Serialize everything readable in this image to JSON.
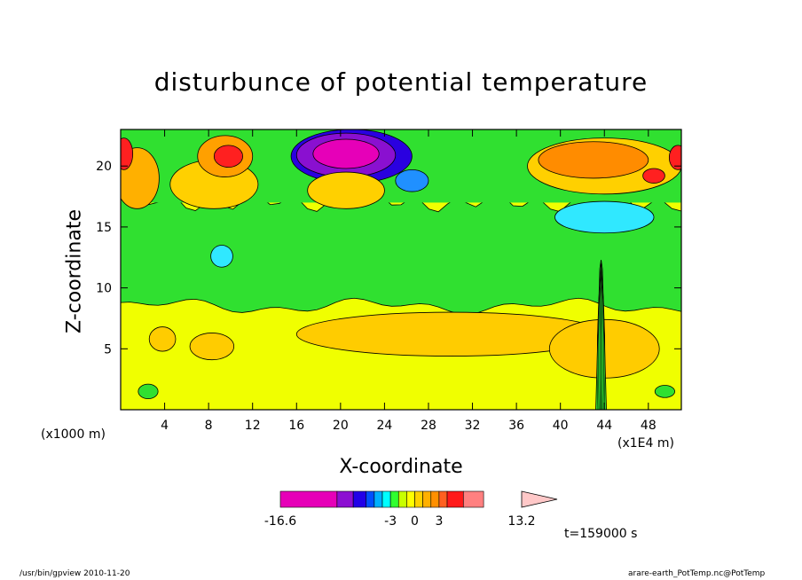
{
  "header": {
    "title": "disturbunce of potential temperature"
  },
  "footer": {
    "left": "/usr/bin/gpview   2010-11-20",
    "right": "arare-earth_PotTemp.nc@PotTemp"
  },
  "annotation": {
    "time": "t=159000 s"
  },
  "chart_data": {
    "type": "heatmap",
    "title": "disturbunce of potential temperature",
    "xlabel": "X-coordinate",
    "ylabel": "Z-coordinate",
    "x_unit_label": "(x1000 m)",
    "x_unit_label_2": "(x1E4 m)",
    "xlim": [
      0,
      51
    ],
    "ylim": [
      0,
      23
    ],
    "x_ticks": [
      4,
      8,
      12,
      16,
      20,
      24,
      28,
      32,
      36,
      40,
      44,
      48
    ],
    "y_ticks": [
      5,
      10,
      15,
      20
    ],
    "x_tick_labels": [
      "4",
      "8",
      "12",
      "16",
      "20",
      "24",
      "28",
      "32",
      "36",
      "40",
      "44",
      "48"
    ],
    "y_tick_labels": [
      "5",
      "10",
      "15",
      "20"
    ],
    "colorbar": {
      "min": -16.6,
      "max": 13.2,
      "levels": [
        -16.6,
        -9.6,
        -7.6,
        -6,
        -5,
        -4,
        -3,
        -2,
        -1,
        0,
        1,
        2,
        3,
        4,
        6,
        8.5,
        13.2
      ],
      "colors": [
        "#e600b8",
        "#8c0fd2",
        "#2200e8",
        "#0050ff",
        "#00b0ff",
        "#00ffff",
        "#30ff30",
        "#c8ff00",
        "#ffff00",
        "#ffd200",
        "#ffb000",
        "#ff9000",
        "#ff6020",
        "#ff1a1a",
        "#ff8080"
      ],
      "extend_color": "#ffc8c8",
      "tick_labels": [
        {
          "value": -16.6,
          "text": "-16.6"
        },
        {
          "value": -3,
          "text": "-3"
        },
        {
          "value": 0,
          "text": "0"
        },
        {
          "value": 3,
          "text": "3"
        },
        {
          "value": 13.2,
          "text": "13.2"
        }
      ]
    },
    "regions": {
      "background": "#f0ff00",
      "mid_band": {
        "z_range": [
          8.5,
          17
        ],
        "color": "#30e030"
      },
      "upper_blobs": [
        {
          "x": 21,
          "z": 20.8,
          "rx": 5.5,
          "rz": 2.2,
          "color": "#2a00e0"
        },
        {
          "x": 20.5,
          "z": 20.9,
          "rx": 4.5,
          "rz": 1.8,
          "color": "#8a10d0"
        },
        {
          "x": 20.5,
          "z": 21,
          "rx": 3,
          "rz": 1.2,
          "color": "#e600b8"
        },
        {
          "x": 26.5,
          "z": 18.8,
          "rx": 1.5,
          "rz": 0.9,
          "color": "#2090ff"
        },
        {
          "x": 9.5,
          "z": 20.8,
          "rx": 2.5,
          "rz": 1.7,
          "color": "#ffa000"
        },
        {
          "x": 9.8,
          "z": 20.8,
          "rx": 1.3,
          "rz": 0.9,
          "color": "#ff2020"
        },
        {
          "x": 44,
          "z": 20,
          "rx": 7,
          "rz": 2.3,
          "color": "#ffd000"
        },
        {
          "x": 43,
          "z": 20.5,
          "rx": 5,
          "rz": 1.5,
          "color": "#ff8c00"
        },
        {
          "x": 48.5,
          "z": 19.2,
          "rx": 1,
          "rz": 0.6,
          "color": "#ff2020"
        },
        {
          "x": 50.7,
          "z": 20.7,
          "rx": 0.8,
          "rz": 1,
          "color": "#ff2020"
        },
        {
          "x": 0.3,
          "z": 21,
          "rx": 0.8,
          "rz": 1.3,
          "color": "#ff2020"
        },
        {
          "x": 44,
          "z": 15.8,
          "rx": 4.5,
          "rz": 1.3,
          "color": "#30e8ff"
        },
        {
          "x": 9.2,
          "z": 12.6,
          "rx": 1,
          "rz": 0.9,
          "color": "#30e8ff"
        },
        {
          "x": 20.5,
          "z": 18,
          "rx": 3.5,
          "rz": 1.5,
          "color": "#ffd000"
        },
        {
          "x": 8.5,
          "z": 18.5,
          "rx": 4,
          "rz": 2,
          "color": "#ffd000"
        },
        {
          "x": 1.5,
          "z": 19,
          "rx": 2,
          "rz": 2.5,
          "color": "#ffb000"
        }
      ],
      "lower_blobs": [
        {
          "x": 30,
          "z": 6.2,
          "rx": 14,
          "rz": 1.8,
          "color": "#ffcc00"
        },
        {
          "x": 44,
          "z": 5,
          "rx": 5,
          "rz": 2.4,
          "color": "#ffcc00"
        },
        {
          "x": 3.8,
          "z": 5.8,
          "rx": 1.2,
          "rz": 1,
          "color": "#ffcc00"
        },
        {
          "x": 8.3,
          "z": 5.2,
          "rx": 2,
          "rz": 1.1,
          "color": "#ffcc00"
        },
        {
          "x": 2.5,
          "z": 1.5,
          "rx": 0.9,
          "rz": 0.6,
          "color": "#30e030"
        },
        {
          "x": 49.5,
          "z": 1.5,
          "rx": 0.9,
          "rz": 0.5,
          "color": "#30e030"
        }
      ],
      "plume": {
        "x": 43.7,
        "z_top": 12.3,
        "color": "#30e030"
      }
    }
  }
}
